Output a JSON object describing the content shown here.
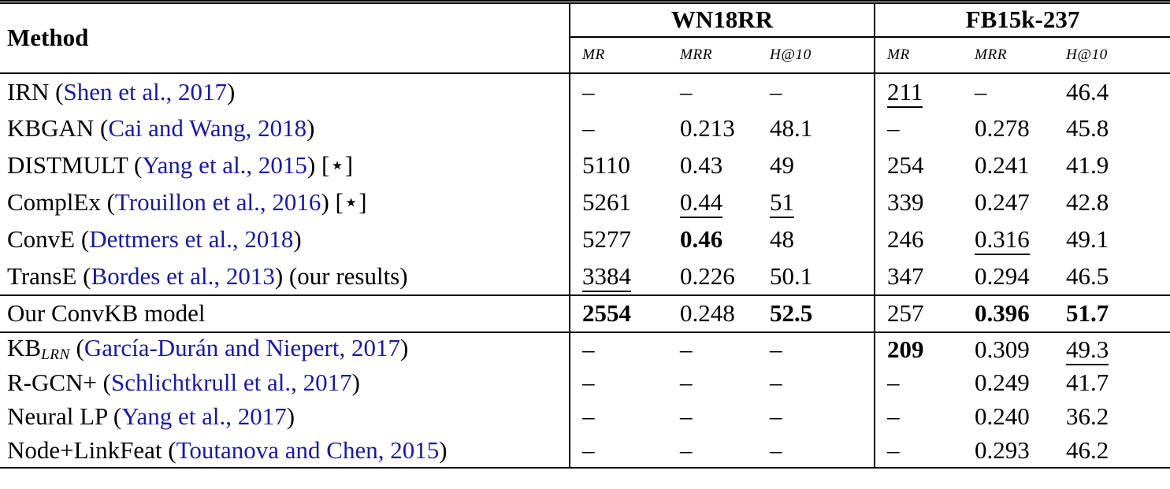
{
  "colors": {
    "citation_link": "#1A1A9C",
    "text": "#000000",
    "border": "#000000",
    "background": "#FFFFFF"
  },
  "table": {
    "method_header": "Method",
    "groups": [
      {
        "label": "WN18RR",
        "metrics": [
          "MR",
          "MRR",
          "H@10"
        ]
      },
      {
        "label": "FB15k-237",
        "metrics": [
          "MR",
          "MRR",
          "H@10"
        ]
      }
    ],
    "missing_value_symbol": "–",
    "sections": [
      {
        "rows": [
          {
            "method": [
              {
                "t": "IRN ("
              },
              {
                "t": "Shen et al., 2017",
                "link": true
              },
              {
                "t": ")"
              }
            ],
            "cells": [
              {
                "v": "–"
              },
              {
                "v": "–"
              },
              {
                "v": "–"
              },
              {
                "v": "211",
                "u": true
              },
              {
                "v": "–"
              },
              {
                "v": "46.4"
              }
            ]
          },
          {
            "method": [
              {
                "t": "KBGAN ("
              },
              {
                "t": "Cai and Wang, 2018",
                "link": true
              },
              {
                "t": ")"
              }
            ],
            "cells": [
              {
                "v": "–"
              },
              {
                "v": "0.213"
              },
              {
                "v": "48.1"
              },
              {
                "v": "–"
              },
              {
                "v": "0.278"
              },
              {
                "v": "45.8"
              }
            ]
          },
          {
            "method": [
              {
                "t": "DISTMULT ("
              },
              {
                "t": "Yang et al., 2015",
                "link": true
              },
              {
                "t": ") [⋆]"
              }
            ],
            "cells": [
              {
                "v": "5110"
              },
              {
                "v": "0.43"
              },
              {
                "v": "49"
              },
              {
                "v": "254"
              },
              {
                "v": "0.241"
              },
              {
                "v": "41.9"
              }
            ]
          },
          {
            "method": [
              {
                "t": "ComplEx ("
              },
              {
                "t": "Trouillon et al., 2016",
                "link": true
              },
              {
                "t": ") [⋆]"
              }
            ],
            "cells": [
              {
                "v": "5261"
              },
              {
                "v": "0.44",
                "u": true
              },
              {
                "v": "51",
                "u": true
              },
              {
                "v": "339"
              },
              {
                "v": "0.247"
              },
              {
                "v": "42.8"
              }
            ]
          },
          {
            "method": [
              {
                "t": "ConvE ("
              },
              {
                "t": "Dettmers et al., 2018",
                "link": true
              },
              {
                "t": ")"
              }
            ],
            "cells": [
              {
                "v": "5277"
              },
              {
                "v": "0.46",
                "b": true
              },
              {
                "v": "48"
              },
              {
                "v": "246"
              },
              {
                "v": "0.316",
                "u": true
              },
              {
                "v": "49.1"
              }
            ]
          },
          {
            "method": [
              {
                "t": "TransE ("
              },
              {
                "t": "Bordes et al., 2013",
                "link": true
              },
              {
                "t": ") (our results)"
              }
            ],
            "cells": [
              {
                "v": "3384",
                "u": true
              },
              {
                "v": "0.226"
              },
              {
                "v": "50.1"
              },
              {
                "v": "347"
              },
              {
                "v": "0.294"
              },
              {
                "v": "46.5"
              }
            ]
          }
        ]
      },
      {
        "rows": [
          {
            "method": [
              {
                "t": "Our ConvKB model"
              }
            ],
            "cells": [
              {
                "v": "2554",
                "b": true
              },
              {
                "v": "0.248"
              },
              {
                "v": "52.5",
                "b": true
              },
              {
                "v": "257"
              },
              {
                "v": "0.396",
                "b": true
              },
              {
                "v": "51.7",
                "b": true
              }
            ]
          }
        ]
      },
      {
        "rows": [
          {
            "method": [
              {
                "t": "KB"
              },
              {
                "t": "LRN",
                "sub": true
              },
              {
                "t": " ("
              },
              {
                "t": "García-Durán and Niepert, 2017",
                "link": true
              },
              {
                "t": ")"
              }
            ],
            "cells": [
              {
                "v": "–"
              },
              {
                "v": "–"
              },
              {
                "v": "–"
              },
              {
                "v": "209",
                "b": true
              },
              {
                "v": "0.309"
              },
              {
                "v": "49.3",
                "u": true
              }
            ]
          },
          {
            "method": [
              {
                "t": "R-GCN+ ("
              },
              {
                "t": "Schlichtkrull et al., 2017",
                "link": true
              },
              {
                "t": ")"
              }
            ],
            "cells": [
              {
                "v": "–"
              },
              {
                "v": "–"
              },
              {
                "v": "–"
              },
              {
                "v": "–"
              },
              {
                "v": "0.249"
              },
              {
                "v": "41.7"
              }
            ]
          },
          {
            "method": [
              {
                "t": "Neural LP ("
              },
              {
                "t": "Yang et al., 2017",
                "link": true
              },
              {
                "t": ")"
              }
            ],
            "cells": [
              {
                "v": "–"
              },
              {
                "v": "–"
              },
              {
                "v": "–"
              },
              {
                "v": "–"
              },
              {
                "v": "0.240"
              },
              {
                "v": "36.2"
              }
            ]
          },
          {
            "method": [
              {
                "t": "Node+LinkFeat ("
              },
              {
                "t": "Toutanova and Chen, 2015",
                "link": true
              },
              {
                "t": ")"
              }
            ],
            "cells": [
              {
                "v": "–"
              },
              {
                "v": "–"
              },
              {
                "v": "–"
              },
              {
                "v": "–"
              },
              {
                "v": "0.293"
              },
              {
                "v": "46.2"
              }
            ]
          }
        ]
      }
    ]
  }
}
